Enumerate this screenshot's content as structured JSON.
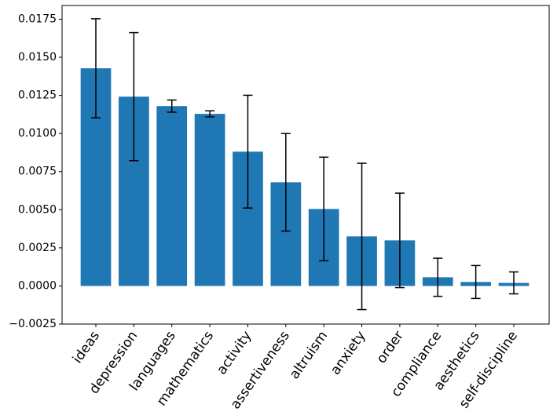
{
  "chart_data": {
    "type": "bar",
    "categories": [
      "ideas",
      "depression",
      "languages",
      "mathematics",
      "activity",
      "assertiveness",
      "altruism",
      "anxiety",
      "order",
      "compliance",
      "aesthetics",
      "self-discipline"
    ],
    "values": [
      0.01428,
      0.01242,
      0.0118,
      0.01129,
      0.00881,
      0.0068,
      0.00505,
      0.00325,
      0.00299,
      0.00057,
      0.00026,
      0.0002
    ],
    "errors": [
      0.00325,
      0.0042,
      0.0004,
      0.0002,
      0.0037,
      0.0032,
      0.0034,
      0.0048,
      0.0031,
      0.00125,
      0.00108,
      0.00072
    ],
    "color": "#1f77b4",
    "ylim": [
      -0.0025,
      0.0184
    ],
    "yticks": [
      {
        "value": -0.0025,
        "label": "−0.0025"
      },
      {
        "value": 0,
        "label": "0.0000"
      },
      {
        "value": 0.0025,
        "label": "0.0025"
      },
      {
        "value": 0.005,
        "label": "0.0050"
      },
      {
        "value": 0.0075,
        "label": "0.0075"
      },
      {
        "value": 0.01,
        "label": "0.0100"
      },
      {
        "value": 0.0125,
        "label": "0.0125"
      },
      {
        "value": 0.015,
        "label": "0.0150"
      },
      {
        "value": 0.0175,
        "label": "0.0175"
      }
    ]
  }
}
